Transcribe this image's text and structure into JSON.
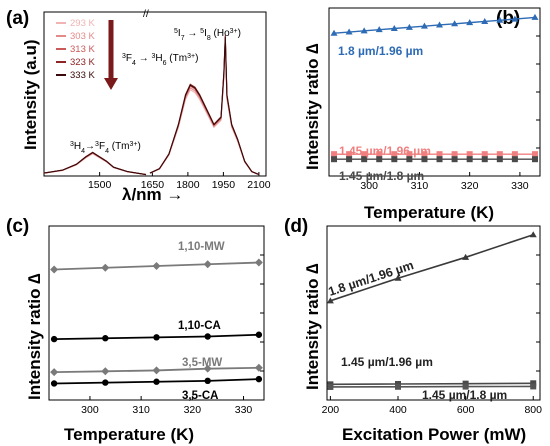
{
  "chart_data": [
    {
      "panel": "(a)",
      "type": "line",
      "xlabel": "λ/nm →",
      "ylabel": "Intensity (a.u)",
      "x_ticks": [
        "1500",
        "1650",
        "1800",
        "1950",
        "2100"
      ],
      "x_break": "//",
      "legend": [
        "293 K",
        "303 K",
        "313 K",
        "323 K",
        "333 K"
      ],
      "legend_colors": [
        "#f2b3b3",
        "#e38a8a",
        "#c95a5a",
        "#8f2424",
        "#3a0a0a"
      ],
      "annotations": {
        "ho": {
          "a": "5",
          "b": "I",
          "c": "7",
          "arrow": " → ",
          "d": "5",
          "e": "I",
          "f": "8",
          "g": " (Ho",
          "h": "3+",
          "i": ")"
        },
        "tm_f4_h6": {
          "a": "3",
          "b": "F",
          "c": "4",
          "arrow": " → ",
          "d": "3",
          "e": "H",
          "f": "6",
          "g": " (Tm",
          "h": "3+",
          "i": ")"
        },
        "tm_h4_f4": {
          "a": "3",
          "b": "H",
          "c": "4",
          "arrow": "→",
          "d": "3",
          "e": "F",
          "f": "4",
          "g": " (Tm",
          "h": "3+",
          "i": ")"
        }
      },
      "series": [
        {
          "name": "293 K",
          "x": [
            1380,
            1420,
            1450,
            1470,
            1485,
            1495,
            1505,
            1515,
            1530,
            1560,
            1600
          ],
          "y": [
            0.02,
            0.04,
            0.08,
            0.13,
            0.16,
            0.14,
            0.12,
            0.1,
            0.06,
            0.03,
            0.01
          ]
        },
        {
          "name": "293 K",
          "x": [
            1640,
            1680,
            1720,
            1760,
            1790,
            1810,
            1830,
            1850,
            1880,
            1910,
            1940,
            1952,
            1958,
            1965,
            1985,
            2010,
            2040,
            2070,
            2100
          ],
          "y": [
            0.02,
            0.05,
            0.15,
            0.35,
            0.55,
            0.62,
            0.6,
            0.55,
            0.45,
            0.35,
            0.4,
            0.7,
            0.95,
            0.55,
            0.35,
            0.25,
            0.1,
            0.03,
            0.01
          ]
        }
      ]
    },
    {
      "panel": "(b)",
      "type": "line",
      "xlabel": "Temperature (K)",
      "ylabel": "Intensity ratio ∆",
      "x_ticks": [
        300,
        310,
        320,
        330
      ],
      "xlim": [
        292,
        334
      ],
      "ylim": [
        0,
        1
      ],
      "series": [
        {
          "name": "1.8 µm/1.96 µm",
          "x": [
            293,
            296,
            299,
            302,
            305,
            308,
            311,
            314,
            317,
            320,
            323,
            326,
            329,
            333
          ],
          "y": [
            0.85,
            0.857,
            0.864,
            0.871,
            0.878,
            0.885,
            0.892,
            0.899,
            0.906,
            0.913,
            0.92,
            0.927,
            0.934,
            0.944
          ]
        },
        {
          "name": "1.45 µm/1.96 µm",
          "x": [
            293,
            296,
            299,
            302,
            305,
            308,
            311,
            314,
            317,
            320,
            323,
            326,
            329,
            333
          ],
          "y": [
            0.13,
            0.13,
            0.13,
            0.13,
            0.13,
            0.13,
            0.13,
            0.13,
            0.13,
            0.13,
            0.13,
            0.13,
            0.13,
            0.13
          ]
        },
        {
          "name": "1.45 µm/1.8 µm",
          "x": [
            293,
            296,
            299,
            302,
            305,
            308,
            311,
            314,
            317,
            320,
            323,
            326,
            329,
            333
          ],
          "y": [
            0.1,
            0.1,
            0.1,
            0.1,
            0.1,
            0.1,
            0.1,
            0.1,
            0.1,
            0.1,
            0.1,
            0.1,
            0.1,
            0.1
          ]
        }
      ],
      "colors": [
        "#2e6bb5",
        "#f08080",
        "#4a4a4a"
      ]
    },
    {
      "panel": "(c)",
      "type": "line",
      "xlabel": "Temperature (K)",
      "ylabel": "Intensity ratio ∆",
      "x_ticks": [
        300,
        310,
        320,
        330
      ],
      "xlim": [
        292,
        334
      ],
      "ylim": [
        0,
        1
      ],
      "series": [
        {
          "name": "1,10-MW",
          "x": [
            293,
            303,
            313,
            323,
            333
          ],
          "y": [
            0.75,
            0.76,
            0.77,
            0.78,
            0.79
          ]
        },
        {
          "name": "1,10-CA",
          "x": [
            293,
            303,
            313,
            323,
            333
          ],
          "y": [
            0.35,
            0.355,
            0.36,
            0.365,
            0.375
          ]
        },
        {
          "name": "3,5-MW",
          "x": [
            293,
            303,
            313,
            323,
            333
          ],
          "y": [
            0.16,
            0.165,
            0.17,
            0.18,
            0.185
          ]
        },
        {
          "name": "3,5-CA",
          "x": [
            293,
            303,
            313,
            323,
            333
          ],
          "y": [
            0.095,
            0.1,
            0.105,
            0.11,
            0.12
          ]
        }
      ],
      "colors": [
        "#7a7a7a",
        "#000000",
        "#7a7a7a",
        "#000000"
      ]
    },
    {
      "panel": "(d)",
      "type": "line",
      "xlabel": "Excitation Power (mW)",
      "ylabel": "Intensity ratio ∆",
      "x_ticks": [
        200,
        400,
        600,
        800
      ],
      "xlim": [
        190,
        820
      ],
      "ylim": [
        0,
        1
      ],
      "series": [
        {
          "name": "1.8 µm/1.96 µm",
          "x": [
            200,
            400,
            600,
            800
          ],
          "y": [
            0.57,
            0.7,
            0.82,
            0.95
          ]
        },
        {
          "name": "1.45 µm/1.96 µm",
          "x": [
            200,
            400,
            600,
            800
          ],
          "y": [
            0.09,
            0.092,
            0.094,
            0.096
          ]
        },
        {
          "name": "1.45 µm/1.8 µm",
          "x": [
            200,
            400,
            600,
            800
          ],
          "y": [
            0.075,
            0.076,
            0.077,
            0.078
          ]
        }
      ],
      "colors": [
        "#3a3a3a",
        "#4a4a4a",
        "#555555"
      ]
    }
  ],
  "labels": {
    "a": "(a)",
    "b": "(b)",
    "c": "(c)",
    "d": "(d)",
    "break": "//",
    "b_s1": "1.8 µm/1.96 µm",
    "b_s2": "1.45 µm/1.96 µm",
    "b_s3": "1.45 µm/1.8 µm",
    "c_s1": "1,10-MW",
    "c_s2": "1,10-CA",
    "c_s3": "3,5-MW",
    "c_s4": "3,5-CA",
    "d_s1": "1.8 µm/1.96 µm",
    "d_s2": "1.45 µm/1.96 µm",
    "d_s3": "1.45 µm/1.8 µm"
  }
}
